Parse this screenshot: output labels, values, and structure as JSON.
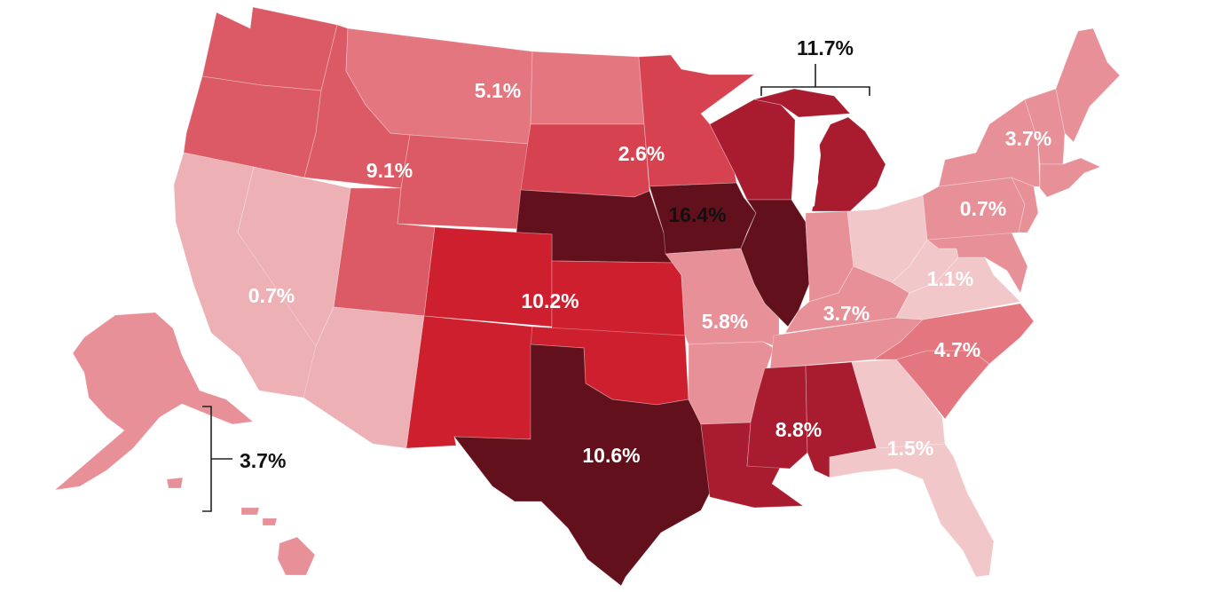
{
  "palette": {
    "very_light": "#f2c7ca",
    "light": "#ecb0b5",
    "light_mid": "#e89098",
    "mid": "#e3767f",
    "mid_dark": "#dc5a65",
    "dark_mid": "#d64250",
    "red": "#cd1f2e",
    "dark_red": "#a91b2e",
    "darkest": "#63101d",
    "label_white": "#ffffff",
    "label_dark": "#111111"
  },
  "regions": [
    {
      "states": [
        "WA",
        "OR",
        "ID",
        "MT",
        "WY",
        "UT"
      ],
      "label": "9.1%"
    },
    {
      "states": [
        "MT",
        "ND"
      ],
      "label": "5.1%"
    },
    {
      "states": [
        "SD",
        "MN"
      ],
      "label": "2.6%"
    },
    {
      "states": [
        "NE",
        "IA",
        "KS",
        "MO"
      ],
      "label": "16.4%"
    },
    {
      "states": [
        "CO",
        "NM",
        "KS"
      ],
      "label": "10.2%"
    },
    {
      "states": [
        "CA",
        "NV",
        "AZ"
      ],
      "label": "0.7%"
    },
    {
      "states": [
        "TX",
        "OK",
        "AR",
        "LA"
      ],
      "label": "10.6%"
    },
    {
      "states": [
        "MO",
        "AR"
      ],
      "label": "5.8%"
    },
    {
      "states": [
        "KY",
        "TN"
      ],
      "label": "3.7%"
    },
    {
      "states": [
        "MS",
        "AL"
      ],
      "label": "8.8%"
    },
    {
      "states": [
        "GA",
        "FL"
      ],
      "label": "1.5%"
    },
    {
      "states": [
        "NC",
        "SC"
      ],
      "label": "4.7%"
    },
    {
      "states": [
        "WV",
        "VA",
        "MD",
        "DE"
      ],
      "label": "1.1%"
    },
    {
      "states": [
        "PA",
        "NJ",
        "NY"
      ],
      "label": "0.7%"
    },
    {
      "states": [
        "ME",
        "NH",
        "VT",
        "MA",
        "RI",
        "CT",
        "NY"
      ],
      "label": "3.7%"
    },
    {
      "states": [
        "WI",
        "MI",
        "IL",
        "IN",
        "OH"
      ],
      "label": "11.7%"
    },
    {
      "states": [
        "AK",
        "HI"
      ],
      "label": "3.7%"
    }
  ]
}
